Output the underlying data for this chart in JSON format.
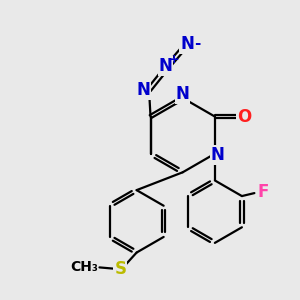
{
  "bg_color": "#e9e9e9",
  "bond_color": "#000000",
  "bond_width": 1.6,
  "dbo": 0.055,
  "atom_colors": {
    "N": "#0000cc",
    "O": "#ff2020",
    "F": "#ff44aa",
    "S": "#bbbb00",
    "C": "#000000"
  },
  "fs": 12
}
